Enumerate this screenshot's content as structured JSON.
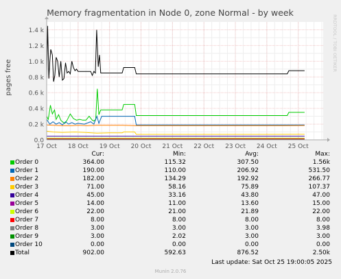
{
  "chart_data": {
    "type": "line",
    "title": "Memory fragmentation in Node 0, zone Normal - by week",
    "ylabel": "pages free",
    "watermark": "RRDTOOL / TOBI OETIKER",
    "xlim": [
      "2025-10-17 00:00",
      "2025-10-25 19:00"
    ],
    "ylim": [
      0,
      1500
    ],
    "yticks": [
      0,
      200,
      400,
      600,
      800,
      1000,
      1200,
      1400
    ],
    "ytick_labels": [
      "0.0",
      "0.2 k",
      "0.4 k",
      "0.6 k",
      "0.8 k",
      "1.0 k",
      "1.2 k",
      "1.4 k"
    ],
    "xtick_labels": [
      "17 Oct",
      "18 Oct",
      "19 Oct",
      "20 Oct",
      "21 Oct",
      "22 Oct",
      "23 Oct",
      "24 Oct",
      "25 Oct"
    ],
    "grid": true,
    "series": [
      {
        "name": "Order 0",
        "color": "#00cc00",
        "points": [
          [
            0.0,
            300
          ],
          [
            0.05,
            260
          ],
          [
            0.12,
            440
          ],
          [
            0.18,
            330
          ],
          [
            0.25,
            380
          ],
          [
            0.3,
            260
          ],
          [
            0.38,
            320
          ],
          [
            0.45,
            250
          ],
          [
            0.5,
            230
          ],
          [
            0.58,
            210
          ],
          [
            0.65,
            250
          ],
          [
            0.75,
            330
          ],
          [
            0.85,
            270
          ],
          [
            0.95,
            250
          ],
          [
            1.05,
            260
          ],
          [
            1.15,
            250
          ],
          [
            1.25,
            250
          ],
          [
            1.35,
            300
          ],
          [
            1.45,
            250
          ],
          [
            1.5,
            240
          ],
          [
            1.56,
            260
          ],
          [
            1.61,
            650
          ],
          [
            1.66,
            320
          ],
          [
            1.72,
            380
          ],
          [
            1.8,
            380
          ],
          [
            2.0,
            380
          ],
          [
            2.4,
            380
          ],
          [
            2.45,
            450
          ],
          [
            2.6,
            450
          ],
          [
            2.8,
            450
          ],
          [
            2.85,
            310
          ],
          [
            3.2,
            310
          ],
          [
            4.0,
            310
          ],
          [
            5.0,
            310
          ],
          [
            6.0,
            310
          ],
          [
            7.0,
            310
          ],
          [
            7.5,
            310
          ],
          [
            7.65,
            310
          ],
          [
            7.7,
            350
          ],
          [
            8.0,
            350
          ],
          [
            8.2,
            350
          ]
        ]
      },
      {
        "name": "Order 1",
        "color": "#0066b3",
        "points": [
          [
            0.0,
            260
          ],
          [
            0.1,
            200
          ],
          [
            0.2,
            230
          ],
          [
            0.3,
            200
          ],
          [
            0.4,
            220
          ],
          [
            0.5,
            190
          ],
          [
            0.6,
            230
          ],
          [
            0.7,
            200
          ],
          [
            0.8,
            220
          ],
          [
            0.9,
            200
          ],
          [
            1.0,
            210
          ],
          [
            1.2,
            200
          ],
          [
            1.4,
            230
          ],
          [
            1.5,
            200
          ],
          [
            1.6,
            300
          ],
          [
            1.66,
            210
          ],
          [
            1.75,
            300
          ],
          [
            2.0,
            300
          ],
          [
            2.4,
            300
          ],
          [
            2.45,
            300
          ],
          [
            2.8,
            300
          ],
          [
            2.85,
            190
          ],
          [
            3.2,
            190
          ],
          [
            4.0,
            190
          ],
          [
            5.0,
            190
          ],
          [
            6.0,
            190
          ],
          [
            7.0,
            190
          ],
          [
            7.5,
            190
          ],
          [
            8.0,
            190
          ],
          [
            8.2,
            190
          ]
        ]
      },
      {
        "name": "Order 2",
        "color": "#ff8000",
        "points": [
          [
            0.0,
            190
          ],
          [
            0.2,
            185
          ],
          [
            0.5,
            180
          ],
          [
            0.8,
            180
          ],
          [
            1.0,
            185
          ],
          [
            1.3,
            180
          ],
          [
            1.6,
            185
          ],
          [
            1.8,
            185
          ],
          [
            2.4,
            185
          ],
          [
            2.85,
            180
          ],
          [
            3.5,
            180
          ],
          [
            4.5,
            180
          ],
          [
            5.5,
            180
          ],
          [
            6.5,
            180
          ],
          [
            7.5,
            180
          ],
          [
            8.2,
            182
          ]
        ]
      },
      {
        "name": "Order 3",
        "color": "#ffcc00",
        "points": [
          [
            0.0,
            110
          ],
          [
            0.2,
            100
          ],
          [
            0.5,
            95
          ],
          [
            0.9,
            100
          ],
          [
            1.2,
            95
          ],
          [
            1.6,
            85
          ],
          [
            2.0,
            90
          ],
          [
            2.4,
            90
          ],
          [
            2.45,
            100
          ],
          [
            2.8,
            100
          ],
          [
            2.85,
            70
          ],
          [
            4.0,
            70
          ],
          [
            5.0,
            70
          ],
          [
            6.0,
            70
          ],
          [
            7.0,
            70
          ],
          [
            8.2,
            71
          ]
        ]
      },
      {
        "name": "Order 4",
        "color": "#330099",
        "points": [
          [
            0.0,
            45
          ],
          [
            1.0,
            45
          ],
          [
            2.0,
            45
          ],
          [
            3.0,
            45
          ],
          [
            4.0,
            45
          ],
          [
            5.0,
            45
          ],
          [
            6.0,
            45
          ],
          [
            7.0,
            45
          ],
          [
            8.2,
            45
          ]
        ]
      },
      {
        "name": "Order 5",
        "color": "#990099",
        "points": [
          [
            0.0,
            14
          ],
          [
            2.0,
            14
          ],
          [
            4.0,
            14
          ],
          [
            6.0,
            14
          ],
          [
            8.2,
            14
          ]
        ]
      },
      {
        "name": "Order 6",
        "color": "#ccff00",
        "points": [
          [
            0.0,
            22
          ],
          [
            2.0,
            22
          ],
          [
            4.0,
            22
          ],
          [
            6.0,
            22
          ],
          [
            8.2,
            22
          ]
        ]
      },
      {
        "name": "Order 7",
        "color": "#ff0000",
        "points": [
          [
            0.0,
            8
          ],
          [
            2.0,
            8
          ],
          [
            4.0,
            8
          ],
          [
            6.0,
            8
          ],
          [
            8.2,
            8
          ]
        ]
      },
      {
        "name": "Order 8",
        "color": "#808080",
        "points": [
          [
            0.0,
            3
          ],
          [
            4.0,
            3
          ],
          [
            8.2,
            3
          ]
        ]
      },
      {
        "name": "Order 9",
        "color": "#008f00",
        "points": [
          [
            0.0,
            3
          ],
          [
            4.0,
            3
          ],
          [
            8.2,
            3
          ]
        ]
      },
      {
        "name": "Order 10",
        "color": "#00487d",
        "points": [
          [
            0.0,
            0
          ],
          [
            4.0,
            0
          ],
          [
            8.2,
            0
          ]
        ]
      },
      {
        "name": "Total",
        "color": "#000000",
        "points": [
          [
            0.0,
            760
          ],
          [
            0.03,
            1450
          ],
          [
            0.07,
            780
          ],
          [
            0.1,
            1000
          ],
          [
            0.13,
            1150
          ],
          [
            0.18,
            1080
          ],
          [
            0.22,
            740
          ],
          [
            0.26,
            820
          ],
          [
            0.3,
            1050
          ],
          [
            0.35,
            1000
          ],
          [
            0.4,
            800
          ],
          [
            0.45,
            1000
          ],
          [
            0.5,
            760
          ],
          [
            0.55,
            780
          ],
          [
            0.6,
            980
          ],
          [
            0.65,
            850
          ],
          [
            0.7,
            870
          ],
          [
            0.75,
            840
          ],
          [
            0.8,
            1000
          ],
          [
            0.85,
            920
          ],
          [
            0.9,
            880
          ],
          [
            0.95,
            900
          ],
          [
            1.0,
            870
          ],
          [
            1.2,
            870
          ],
          [
            1.4,
            870
          ],
          [
            1.45,
            820
          ],
          [
            1.5,
            870
          ],
          [
            1.55,
            850
          ],
          [
            1.59,
            1400
          ],
          [
            1.64,
            930
          ],
          [
            1.68,
            1080
          ],
          [
            1.72,
            850
          ],
          [
            2.0,
            850
          ],
          [
            2.4,
            850
          ],
          [
            2.45,
            920
          ],
          [
            2.7,
            920
          ],
          [
            2.8,
            920
          ],
          [
            2.85,
            840
          ],
          [
            3.2,
            840
          ],
          [
            4.0,
            840
          ],
          [
            5.0,
            840
          ],
          [
            6.0,
            840
          ],
          [
            7.0,
            840
          ],
          [
            7.5,
            840
          ],
          [
            7.65,
            840
          ],
          [
            7.7,
            880
          ],
          [
            8.0,
            880
          ],
          [
            8.2,
            880
          ]
        ]
      }
    ]
  },
  "legend": {
    "headers": {
      "cur": "Cur:",
      "min": "Min:",
      "avg": "Avg:",
      "max": "Max:"
    },
    "rows": [
      {
        "name": "Order 0",
        "color": "#00cc00",
        "cur": "364.00",
        "min": "115.32",
        "avg": "307.50",
        "max": "1.56k"
      },
      {
        "name": "Order 1",
        "color": "#0066b3",
        "cur": "190.00",
        "min": "110.00",
        "avg": "206.92",
        "max": "531.50"
      },
      {
        "name": "Order 2",
        "color": "#ff8000",
        "cur": "182.00",
        "min": "134.29",
        "avg": "192.92",
        "max": "266.77"
      },
      {
        "name": "Order 3",
        "color": "#ffcc00",
        "cur": "71.00",
        "min": "58.16",
        "avg": "75.89",
        "max": "107.37"
      },
      {
        "name": "Order 4",
        "color": "#330099",
        "cur": "45.00",
        "min": "33.16",
        "avg": "43.80",
        "max": "47.00"
      },
      {
        "name": "Order 5",
        "color": "#990099",
        "cur": "14.00",
        "min": "11.00",
        "avg": "13.60",
        "max": "15.00"
      },
      {
        "name": "Order 6",
        "color": "#ccff00",
        "cur": "22.00",
        "min": "21.00",
        "avg": "21.89",
        "max": "22.00"
      },
      {
        "name": "Order 7",
        "color": "#ff0000",
        "cur": "8.00",
        "min": "8.00",
        "avg": "8.00",
        "max": "8.00"
      },
      {
        "name": "Order 8",
        "color": "#808080",
        "cur": "3.00",
        "min": "3.00",
        "avg": "3.00",
        "max": "3.98"
      },
      {
        "name": "Order 9",
        "color": "#008f00",
        "cur": "3.00",
        "min": "2.02",
        "avg": "3.00",
        "max": "3.00"
      },
      {
        "name": "Order 10",
        "color": "#00487d",
        "cur": "0.00",
        "min": "0.00",
        "avg": "0.00",
        "max": "0.00"
      },
      {
        "name": "Total",
        "color": "#000000",
        "cur": "902.00",
        "min": "592.63",
        "avg": "876.52",
        "max": "2.50k"
      }
    ]
  },
  "last_update": "Last update: Sat Oct 25 19:00:05 2025",
  "footer": "Munin 2.0.76"
}
